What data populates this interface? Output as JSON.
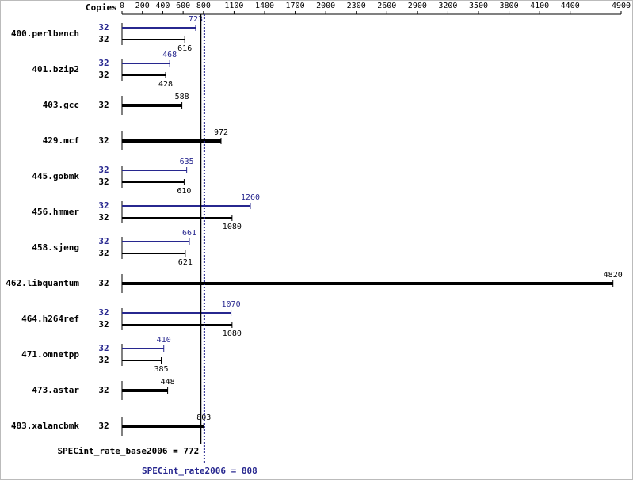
{
  "chart_data": {
    "type": "bar",
    "orientation": "horizontal",
    "copies_label": "Copies",
    "categories": [
      "400.perlbench",
      "401.bzip2",
      "403.gcc",
      "429.mcf",
      "445.gobmk",
      "456.hmmer",
      "458.sjeng",
      "462.libquantum",
      "464.h264ref",
      "471.omnetpp",
      "473.astar",
      "483.xalancbmk"
    ],
    "series": [
      {
        "color": "#27278f",
        "copies": [
          32,
          32,
          null,
          null,
          32,
          32,
          32,
          null,
          32,
          32,
          null,
          null
        ],
        "values": [
          723,
          468,
          null,
          null,
          635,
          1260,
          661,
          null,
          1070,
          410,
          null,
          null
        ]
      },
      {
        "color": "#000000",
        "copies": [
          32,
          32,
          32,
          32,
          32,
          32,
          32,
          32,
          32,
          32,
          32,
          32
        ],
        "values": [
          616,
          428,
          588,
          972,
          610,
          1080,
          621,
          4820,
          1080,
          385,
          448,
          803
        ]
      }
    ],
    "xlim": [
      0,
      4900
    ],
    "xticks": [
      0,
      200,
      400,
      600,
      800,
      1100,
      1400,
      1700,
      2000,
      2300,
      2600,
      2900,
      3200,
      3500,
      3800,
      4100,
      4400,
      4900
    ],
    "reference_lines": [
      {
        "value": 772,
        "label": "SPECint_rate_base2006 = 772",
        "color": "#000000",
        "style": "solid"
      },
      {
        "value": 808,
        "label": "SPECint_rate2006 = 808",
        "color": "#27278f",
        "style": "dotted"
      }
    ]
  }
}
